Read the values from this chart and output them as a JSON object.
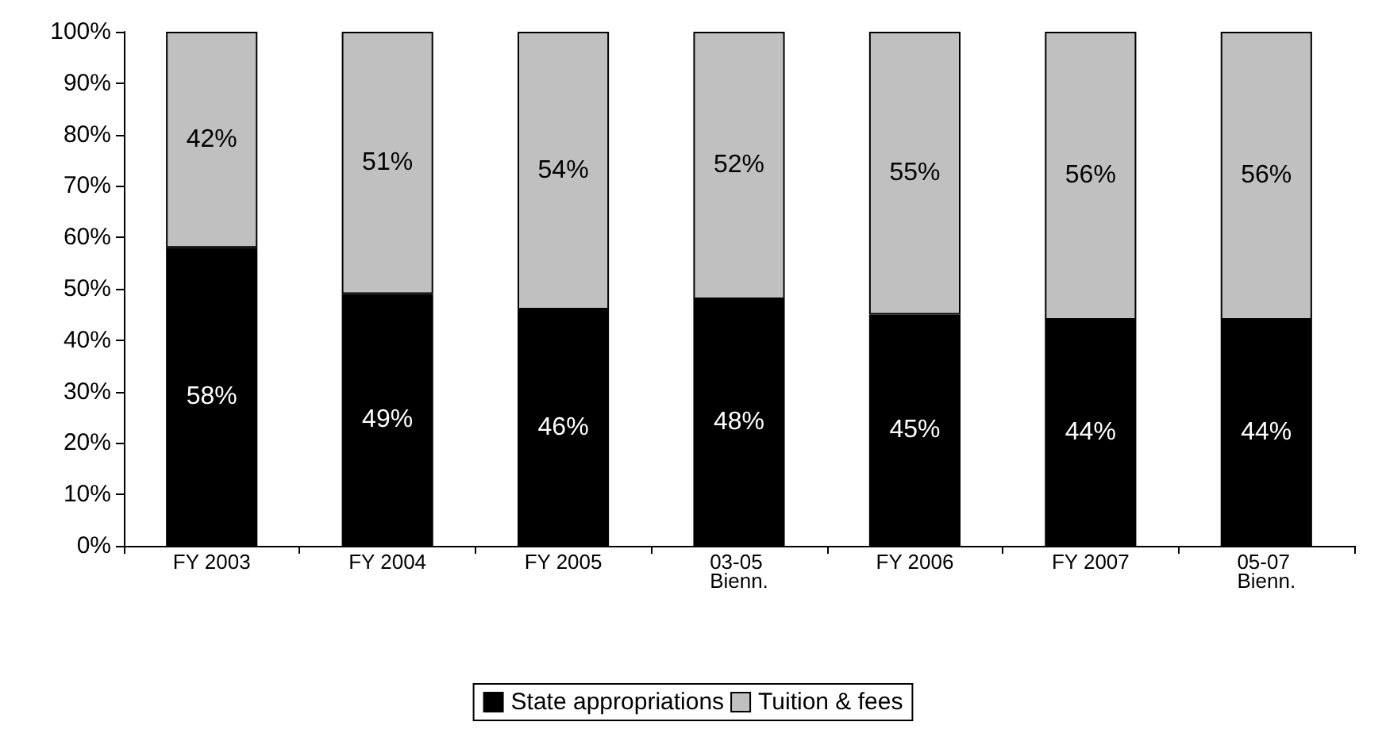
{
  "chart_data": {
    "type": "bar",
    "stacked": true,
    "categories": [
      "FY 2003",
      "FY 2004",
      "FY 2005",
      "03-05 Bienn.",
      "FY 2006",
      "FY 2007",
      "05-07 Bienn."
    ],
    "series": [
      {
        "name": "State appropriations",
        "color": "#000000",
        "values": [
          58,
          49,
          46,
          48,
          45,
          44,
          44
        ],
        "value_labels": [
          "58%",
          "49%",
          "46%",
          "48%",
          "45%",
          "44%",
          "44%"
        ]
      },
      {
        "name": "Tuition & fees",
        "color": "#c0c0c0",
        "values": [
          42,
          51,
          54,
          52,
          55,
          56,
          56
        ],
        "value_labels": [
          "42%",
          "51%",
          "54%",
          "52%",
          "55%",
          "56%",
          "56%"
        ]
      }
    ],
    "ylim": [
      0,
      100
    ],
    "yticks": [
      {
        "value": 0,
        "label": "0%"
      },
      {
        "value": 10,
        "label": "10%"
      },
      {
        "value": 20,
        "label": "20%"
      },
      {
        "value": 30,
        "label": "30%"
      },
      {
        "value": 40,
        "label": "40%"
      },
      {
        "value": 50,
        "label": "50%"
      },
      {
        "value": 60,
        "label": "60%"
      },
      {
        "value": 70,
        "label": "70%"
      },
      {
        "value": 80,
        "label": "80%"
      },
      {
        "value": 90,
        "label": "90%"
      },
      {
        "value": 100,
        "label": "100%"
      }
    ],
    "grid": false,
    "legend": "bottom"
  }
}
